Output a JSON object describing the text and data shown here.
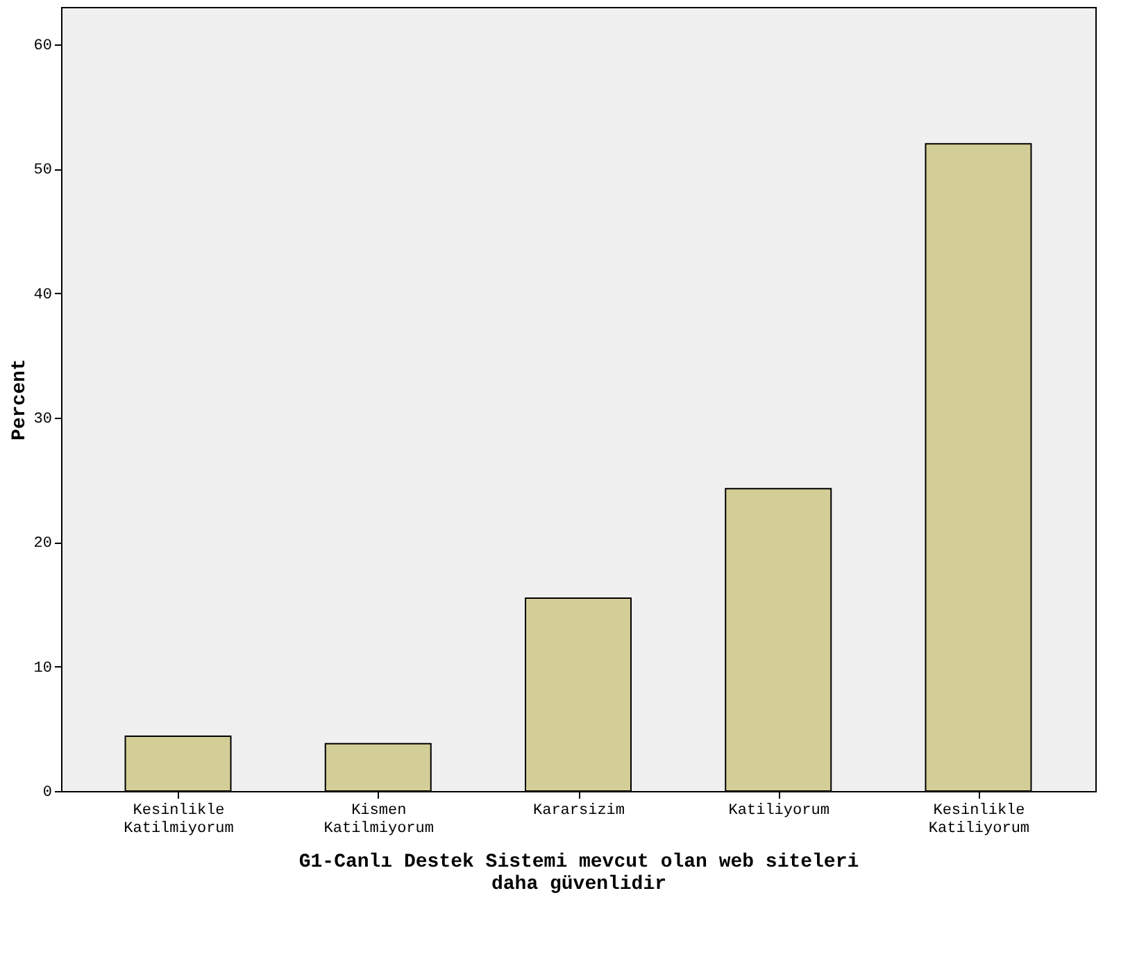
{
  "chart_data": {
    "type": "bar",
    "categories": [
      "Kesinlikle Katilmiyorum",
      "Kismen Katilmiyorum",
      "Kararsizim",
      "Katiliyorum",
      "Kesinlikle Katiliyorum"
    ],
    "values": [
      4.4,
      3.8,
      15.5,
      24.3,
      52.0
    ],
    "color": "#d3ce97",
    "xlabel": "G1-Canlı Destek Sistemi mevcut olan web siteleri daha güvenlidir",
    "ylabel": "Percent",
    "ylim": [
      0,
      63
    ],
    "yticks": [
      0,
      10,
      20,
      30,
      40,
      50,
      60
    ],
    "grid": false
  }
}
